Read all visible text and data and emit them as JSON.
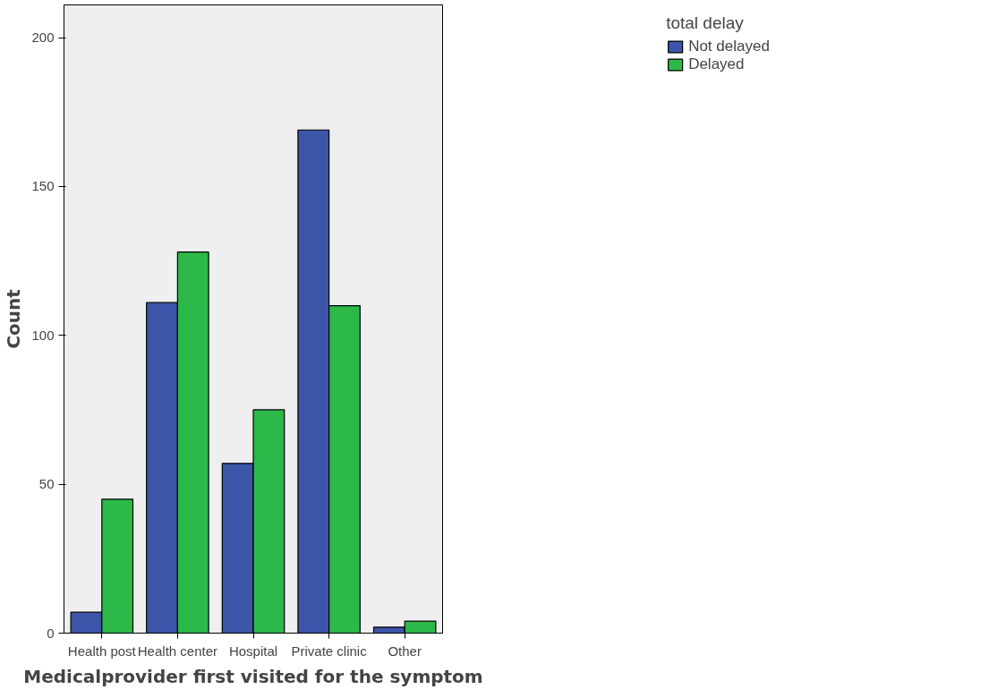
{
  "chart_data": {
    "type": "bar",
    "xlabel": "Medicalprovider first visited for the symptom",
    "ylabel": "Count",
    "legend_title": "total delay",
    "categories": [
      "Health post",
      "Health center",
      "Hospital",
      "Private clinic",
      "Other"
    ],
    "series": [
      {
        "name": "Not delayed",
        "color": "#3c55a8",
        "values": [
          7,
          111,
          57,
          169,
          2
        ]
      },
      {
        "name": "Delayed",
        "color": "#2db84a",
        "values": [
          45,
          128,
          75,
          110,
          4
        ]
      }
    ],
    "ylim": [
      0,
      211
    ],
    "yticks": [
      0,
      50,
      100,
      150,
      200
    ],
    "grid": false,
    "legend": "top right"
  }
}
